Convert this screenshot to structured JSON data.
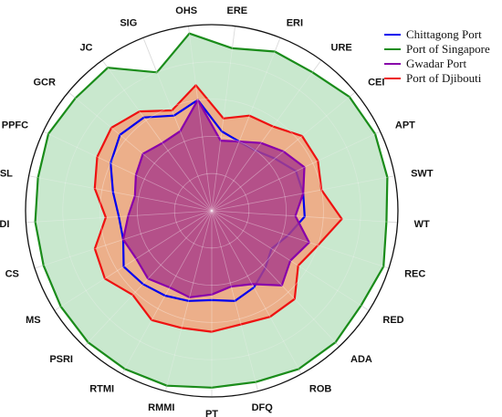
{
  "chart_data": {
    "type": "radar",
    "categories": [
      "ERE",
      "ERI",
      "URE",
      "CEI",
      "APT",
      "SWT",
      "WT",
      "REC",
      "RED",
      "ADA",
      "ROB",
      "DFQ",
      "PT",
      "RMMI",
      "RTMI",
      "PSRI",
      "MS",
      "CS",
      "PDI",
      "PSL",
      "PPFC",
      "GCR",
      "JC",
      "SIG",
      "OHS"
    ],
    "rlim": [
      0,
      1
    ],
    "grid": true,
    "legend_position": "top-right",
    "series": [
      {
        "name": "Chittagong Port",
        "color": "#0000ee",
        "fill": false,
        "values": [
          0.43,
          0.4,
          0.4,
          0.44,
          0.5,
          0.5,
          0.5,
          0.43,
          0.38,
          0.42,
          0.47,
          0.5,
          0.48,
          0.5,
          0.52,
          0.54,
          0.56,
          0.5,
          0.5,
          0.54,
          0.6,
          0.64,
          0.62,
          0.55,
          0.6
        ]
      },
      {
        "name": "Port of Singapore",
        "color": "#1a8c1a",
        "fill": true,
        "fill_color": "#bfe4c6",
        "values": [
          0.88,
          0.92,
          0.92,
          0.96,
          0.97,
          0.96,
          0.94,
          0.97,
          0.95,
          0.97,
          0.97,
          0.95,
          0.95,
          0.97,
          0.97,
          0.97,
          0.96,
          0.95,
          0.95,
          0.95,
          0.97,
          0.95,
          0.95,
          0.8,
          0.96
        ]
      },
      {
        "name": "Gwadar Port",
        "color": "#8800aa",
        "fill": true,
        "fill_color": "#aa4088",
        "values": [
          0.38,
          0.4,
          0.45,
          0.5,
          0.55,
          0.5,
          0.45,
          0.55,
          0.5,
          0.55,
          0.45,
          0.42,
          0.45,
          0.48,
          0.47,
          0.5,
          0.48,
          0.5,
          0.45,
          0.42,
          0.45,
          0.48,
          0.45,
          0.46,
          0.6
        ]
      },
      {
        "name": "Port of Djibouti",
        "color": "#ee1111",
        "fill": true,
        "fill_color": "#f2a47e",
        "values": [
          0.5,
          0.55,
          0.56,
          0.63,
          0.63,
          0.6,
          0.7,
          0.6,
          0.55,
          0.65,
          0.65,
          0.63,
          0.65,
          0.65,
          0.67,
          0.62,
          0.68,
          0.66,
          0.57,
          0.64,
          0.68,
          0.7,
          0.66,
          0.58,
          0.68
        ]
      }
    ]
  }
}
